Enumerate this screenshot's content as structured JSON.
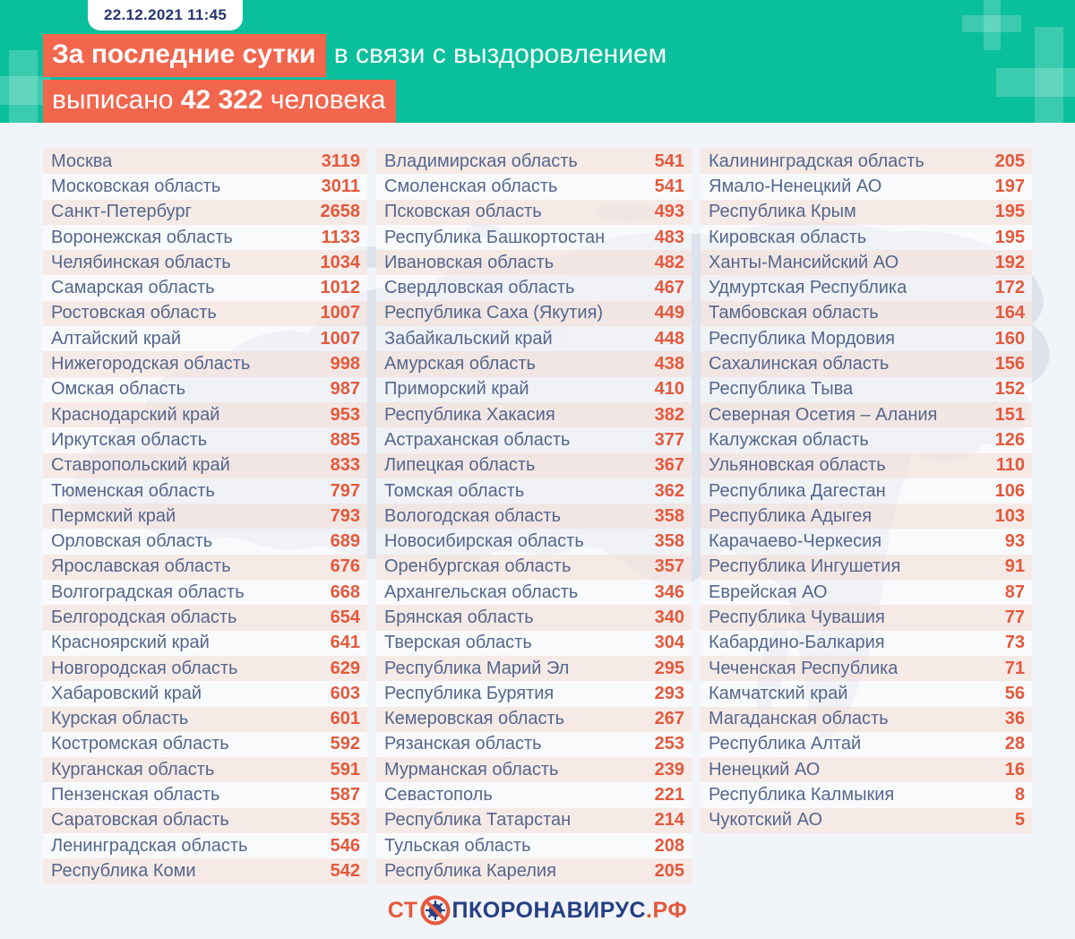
{
  "header": {
    "date": "22.12.2021 11:45",
    "highlight1": "За последние сутки",
    "rest1": " в связи с выздоровлением",
    "line2_prefix": "выписано ",
    "line2_number": "42 322",
    "line2_suffix": " человека"
  },
  "colors": {
    "teal": "#0abf9b",
    "highlight_orange": "#f2664d",
    "value_orange": "#e4593c",
    "label_slate": "#54678c",
    "date_navy": "#25356e",
    "logo_navy": "#253f85",
    "stripe_pink": "#f7e7e2",
    "page_bg": "#f1f4f8",
    "map_gray": "#d9deea"
  },
  "footer": {
    "logo_prefix": "СТ",
    "logo_icon": "no-virus-icon",
    "logo_middle": "ПКОРОНАВИРУС",
    "logo_suffix": ".РФ"
  },
  "chart_data": {
    "type": "table",
    "title": "За последние сутки в связи с выздоровлением выписано 42 322 человека",
    "total_discharged": "42 322",
    "timestamp": "22.12.2021 11:45",
    "columns": [
      [
        {
          "region": "Москва",
          "value": "3119"
        },
        {
          "region": "Московская область",
          "value": "3011"
        },
        {
          "region": "Санкт-Петербург",
          "value": "2658"
        },
        {
          "region": "Воронежская область",
          "value": "1133"
        },
        {
          "region": "Челябинская область",
          "value": "1034"
        },
        {
          "region": "Самарская область",
          "value": "1012"
        },
        {
          "region": "Ростовская область",
          "value": "1007"
        },
        {
          "region": "Алтайский край",
          "value": "1007"
        },
        {
          "region": "Нижегородская область",
          "value": "998"
        },
        {
          "region": "Омская область",
          "value": "987"
        },
        {
          "region": "Краснодарский край",
          "value": "953"
        },
        {
          "region": "Иркутская область",
          "value": "885"
        },
        {
          "region": "Ставропольский край",
          "value": "833"
        },
        {
          "region": "Тюменская область",
          "value": "797"
        },
        {
          "region": "Пермский край",
          "value": "793"
        },
        {
          "region": "Орловская область",
          "value": "689"
        },
        {
          "region": "Ярославская область",
          "value": "676"
        },
        {
          "region": "Волгоградская область",
          "value": "668"
        },
        {
          "region": "Белгородская область",
          "value": "654"
        },
        {
          "region": "Красноярский край",
          "value": "641"
        },
        {
          "region": "Новгородская область",
          "value": "629"
        },
        {
          "region": "Хабаровский край",
          "value": "603"
        },
        {
          "region": "Курская область",
          "value": "601"
        },
        {
          "region": "Костромская область",
          "value": "592"
        },
        {
          "region": "Курганская область",
          "value": "591"
        },
        {
          "region": "Пензенская область",
          "value": "587"
        },
        {
          "region": "Саратовская область",
          "value": "553"
        },
        {
          "region": "Ленинградская область",
          "value": "546"
        },
        {
          "region": "Республика Коми",
          "value": "542"
        }
      ],
      [
        {
          "region": "Владимирская область",
          "value": "541"
        },
        {
          "region": "Смоленская область",
          "value": "541"
        },
        {
          "region": "Псковская область",
          "value": "493"
        },
        {
          "region": "Республика Башкортостан",
          "value": "483"
        },
        {
          "region": "Ивановская область",
          "value": "482"
        },
        {
          "region": "Свердловская область",
          "value": "467"
        },
        {
          "region": "Республика Саха (Якутия)",
          "value": "449"
        },
        {
          "region": "Забайкальский край",
          "value": "448"
        },
        {
          "region": "Амурская область",
          "value": "438"
        },
        {
          "region": "Приморский край",
          "value": "410"
        },
        {
          "region": "Республика Хакасия",
          "value": "382"
        },
        {
          "region": "Астраханская область",
          "value": "377"
        },
        {
          "region": "Липецкая область",
          "value": "367"
        },
        {
          "region": "Томская область",
          "value": "362"
        },
        {
          "region": "Вологодская область",
          "value": "358"
        },
        {
          "region": "Новосибирская область",
          "value": "358"
        },
        {
          "region": "Оренбургская область",
          "value": "357"
        },
        {
          "region": "Архангельская область",
          "value": "346"
        },
        {
          "region": "Брянская область",
          "value": "340"
        },
        {
          "region": "Тверская область",
          "value": "304"
        },
        {
          "region": "Республика Марий Эл",
          "value": "295"
        },
        {
          "region": "Республика Бурятия",
          "value": "293"
        },
        {
          "region": "Кемеровская область",
          "value": "267"
        },
        {
          "region": "Рязанская область",
          "value": "253"
        },
        {
          "region": "Мурманская область",
          "value": "239"
        },
        {
          "region": "Севастополь",
          "value": "221"
        },
        {
          "region": "Республика Татарстан",
          "value": "214"
        },
        {
          "region": "Тульская область",
          "value": "208"
        },
        {
          "region": "Республика Карелия",
          "value": "205"
        }
      ],
      [
        {
          "region": "Калининградская область",
          "value": "205"
        },
        {
          "region": "Ямало-Ненецкий АО",
          "value": "197"
        },
        {
          "region": "Республика Крым",
          "value": "195"
        },
        {
          "region": "Кировская область",
          "value": "195"
        },
        {
          "region": "Ханты-Мансийский АО",
          "value": "192"
        },
        {
          "region": "Удмуртская Республика",
          "value": "172"
        },
        {
          "region": "Тамбовская область",
          "value": "164"
        },
        {
          "region": "Республика Мордовия",
          "value": "160"
        },
        {
          "region": "Сахалинская область",
          "value": "156"
        },
        {
          "region": "Республика Тыва",
          "value": "152"
        },
        {
          "region": "Северная Осетия – Алания",
          "value": "151"
        },
        {
          "region": "Калужская область",
          "value": "126"
        },
        {
          "region": "Ульяновская область",
          "value": "110"
        },
        {
          "region": "Республика Дагестан",
          "value": "106"
        },
        {
          "region": "Республика Адыгея",
          "value": "103"
        },
        {
          "region": "Карачаево-Черкесия",
          "value": "93"
        },
        {
          "region": "Республика Ингушетия",
          "value": "91"
        },
        {
          "region": "Еврейская АО",
          "value": "87"
        },
        {
          "region": "Республика Чувашия",
          "value": "77"
        },
        {
          "region": "Кабардино-Балкария",
          "value": "73"
        },
        {
          "region": "Чеченская Республика",
          "value": "71"
        },
        {
          "region": "Камчатский край",
          "value": "56"
        },
        {
          "region": "Магаданская область",
          "value": "36"
        },
        {
          "region": "Республика Алтай",
          "value": "28"
        },
        {
          "region": "Ненецкий АО",
          "value": "16"
        },
        {
          "region": "Республика Калмыкия",
          "value": "8"
        },
        {
          "region": "Чукотский АО",
          "value": "5"
        }
      ]
    ]
  }
}
